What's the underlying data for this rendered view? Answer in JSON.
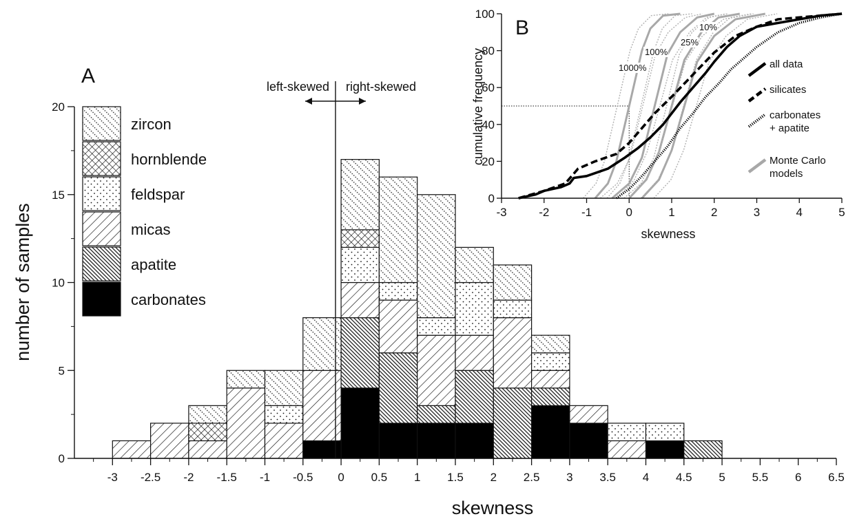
{
  "colors": {
    "ink": "#111111",
    "bg": "#ffffff",
    "monte_carlo": "#a8a8a8",
    "carbonates": "#000000"
  },
  "chart_data": [
    {
      "type": "bar",
      "panel": "A",
      "stacked": true,
      "xlabel": "skewness",
      "ylabel": "number of samples",
      "xlim": [
        -3,
        6.5
      ],
      "ylim": [
        0,
        20
      ],
      "bin_width": 0.5,
      "x_ticks": [
        "-3",
        "-2.5",
        "-2",
        "-1.5",
        "-1",
        "-0.5",
        "0",
        "0.5",
        "1",
        "1.5",
        "2",
        "2.5",
        "3",
        "3.5",
        "4",
        "4.5",
        "5",
        "5.5",
        "6",
        "6.5"
      ],
      "y_ticks": [
        "0",
        "5",
        "10",
        "15",
        "20"
      ],
      "categories": [
        "-3",
        "-2.5",
        "-2",
        "-1.5",
        "-1",
        "-0.5",
        "0",
        "0.5",
        "1",
        "1.5",
        "2",
        "2.5",
        "3",
        "3.5",
        "4",
        "4.5"
      ],
      "series": [
        {
          "name": "carbonates",
          "pattern": "solid",
          "values": [
            0,
            0,
            0,
            0,
            0,
            1,
            4,
            2,
            2,
            2,
            0,
            3,
            2,
            0,
            1,
            0
          ]
        },
        {
          "name": "apatite",
          "pattern": "dense-hatch",
          "values": [
            0,
            0,
            0,
            0,
            0,
            0,
            4,
            4,
            1,
            3,
            4,
            1,
            0,
            0,
            0,
            1
          ]
        },
        {
          "name": "micas",
          "pattern": "diagonal-hatch",
          "values": [
            1,
            2,
            1,
            4,
            2,
            4,
            2,
            3,
            4,
            2,
            4,
            1,
            1,
            1,
            0,
            0
          ]
        },
        {
          "name": "feldspar",
          "pattern": "dots",
          "values": [
            0,
            0,
            0,
            0,
            1,
            0,
            2,
            1,
            1,
            3,
            1,
            1,
            0,
            1,
            1,
            0
          ]
        },
        {
          "name": "hornblende",
          "pattern": "crosshatch",
          "values": [
            0,
            0,
            1,
            0,
            0,
            0,
            1,
            0,
            0,
            0,
            0,
            0,
            0,
            0,
            0,
            0
          ]
        },
        {
          "name": "zircon",
          "pattern": "fine-dots",
          "values": [
            0,
            0,
            1,
            1,
            2,
            3,
            4,
            6,
            7,
            2,
            2,
            1,
            0,
            0,
            0,
            0
          ]
        }
      ],
      "legend_order": [
        "zircon",
        "hornblende",
        "feldspar",
        "micas",
        "apatite",
        "carbonates"
      ],
      "annotations": {
        "left": "left-skewed",
        "right": "right-skewed"
      },
      "panel_label": "A"
    },
    {
      "type": "line",
      "panel": "B",
      "xlabel": "skewness",
      "ylabel": "cumulative frequency",
      "xlim": [
        -3,
        5
      ],
      "ylim": [
        0,
        100
      ],
      "x_ticks": [
        "-3",
        "-2",
        "-1",
        "0",
        "1",
        "2",
        "3",
        "4",
        "5"
      ],
      "y_ticks": [
        "0",
        "20",
        "40",
        "60",
        "80",
        "100"
      ],
      "reference_line": {
        "y": 50,
        "x": 0
      },
      "series": [
        {
          "name": "all  data",
          "style": "solid",
          "x": [
            -2.6,
            -2.2,
            -2.0,
            -1.6,
            -1.4,
            -1.3,
            -1.0,
            -0.5,
            -0.1,
            0.2,
            0.5,
            0.8,
            1.0,
            1.2,
            1.5,
            1.8,
            2.0,
            2.3,
            2.6,
            3.0,
            3.5,
            4.0,
            4.5,
            5.0
          ],
          "y": [
            0,
            2,
            4,
            6,
            8,
            11,
            12,
            16,
            22,
            27,
            33,
            40,
            46,
            52,
            60,
            68,
            74,
            82,
            88,
            93,
            95,
            97,
            99,
            100
          ]
        },
        {
          "name": "silicates",
          "style": "dashed",
          "x": [
            -2.6,
            -2.0,
            -1.5,
            -1.2,
            -0.8,
            -0.3,
            0.0,
            0.3,
            0.6,
            1.0,
            1.5,
            2.0,
            2.5,
            3.0,
            3.5,
            4.5,
            5.0
          ],
          "y": [
            0,
            4,
            8,
            16,
            20,
            24,
            30,
            38,
            46,
            55,
            67,
            79,
            88,
            93,
            97,
            99,
            100
          ]
        },
        {
          "name": "carbonates\n+ apatite",
          "style": "dotted-thick",
          "x": [
            -0.3,
            0.0,
            0.3,
            0.6,
            0.9,
            1.2,
            1.5,
            1.8,
            2.1,
            2.4,
            2.7,
            3.0,
            3.5,
            4.0,
            4.5,
            5.0
          ],
          "y": [
            0,
            5,
            12,
            20,
            28,
            38,
            46,
            55,
            62,
            70,
            76,
            82,
            90,
            95,
            98,
            100
          ]
        },
        {
          "name": "Monte Carlo\nmodels",
          "style": "grey",
          "curves": [
            {
              "label": "1000%",
              "x": [
                -0.8,
                -0.5,
                -0.3,
                0.0,
                0.3,
                0.5,
                0.8,
                1.2
              ],
              "y": [
                0,
                8,
                20,
                50,
                80,
                92,
                99,
                100
              ]
            },
            {
              "label": "100%",
              "x": [
                -0.4,
                0.0,
                0.3,
                0.6,
                0.9,
                1.2,
                1.6,
                2.0
              ],
              "y": [
                0,
                8,
                22,
                50,
                78,
                90,
                98,
                100
              ]
            },
            {
              "label": "25%",
              "x": [
                0.0,
                0.4,
                0.7,
                1.0,
                1.3,
                1.7,
                2.1,
                2.6
              ],
              "y": [
                0,
                10,
                25,
                50,
                75,
                90,
                98,
                100
              ]
            },
            {
              "label": "10%",
              "x": [
                0.3,
                0.7,
                1.0,
                1.3,
                1.6,
                2.0,
                2.5,
                3.2
              ],
              "y": [
                0,
                10,
                26,
                50,
                74,
                88,
                97,
                100
              ]
            }
          ]
        }
      ],
      "percent_labels": [
        "1000%",
        "100%",
        "25%",
        "10%"
      ],
      "panel_label": "B"
    }
  ]
}
